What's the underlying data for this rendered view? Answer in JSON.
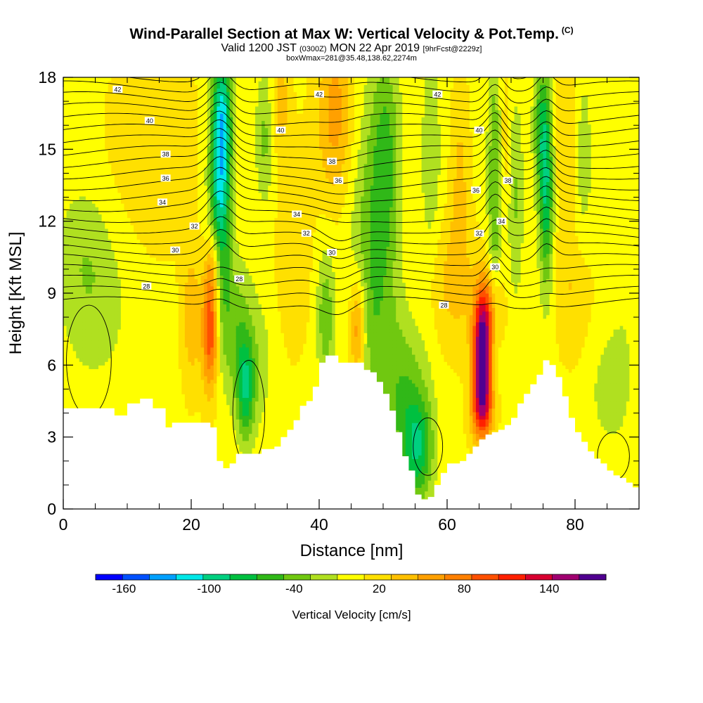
{
  "header": {
    "title": "Wind-Parallel Section at Max W: Vertical Velocity & Pot.Temp.",
    "copyright_mark": "(C)",
    "valid_prefix": "Valid 1200 JST",
    "valid_utc": "(0300Z)",
    "valid_date": "MON 22 Apr 2019",
    "forecast": "[9hrFcst@2229z]",
    "box_info": "boxWmax=281@35.48,138.62,2274m"
  },
  "chart_data": {
    "type": "heatmap",
    "title": "Wind-Parallel Section at Max W: Vertical Velocity & Pot.Temp.",
    "xlabel": "Distance [nm]",
    "ylabel": "Height [Kft MSL]",
    "xlim": [
      0,
      90
    ],
    "ylim": [
      0,
      18
    ],
    "x_ticks": [
      0,
      20,
      40,
      60,
      80
    ],
    "y_ticks": [
      0,
      3,
      6,
      9,
      12,
      15,
      18
    ],
    "colorbar": {
      "title": "Vertical Velocity [cm/s]",
      "labels": [
        "-160",
        "-100",
        "-40",
        "20",
        "80",
        "140"
      ],
      "label_values": [
        -160,
        -100,
        -40,
        20,
        80,
        140
      ],
      "min": -180,
      "max": 180,
      "step": 20,
      "colors": [
        "#0000ff",
        "#0050ff",
        "#00a0ff",
        "#00e8e8",
        "#00d080",
        "#00c040",
        "#30b818",
        "#70c810",
        "#b0e020",
        "#ffff00",
        "#ffe000",
        "#ffc000",
        "#ffa000",
        "#ff8000",
        "#ff5000",
        "#ff2000",
        "#d80030",
        "#a00070",
        "#500090"
      ]
    },
    "terrain_kft": [
      [
        0,
        4.2
      ],
      [
        4,
        4.2
      ],
      [
        8,
        4.2
      ],
      [
        8,
        3.9
      ],
      [
        10,
        4.4
      ],
      [
        12,
        4.6
      ],
      [
        14,
        4.2
      ],
      [
        16,
        3.4
      ],
      [
        17,
        3.6
      ],
      [
        20,
        3.6
      ],
      [
        23,
        3.4
      ],
      [
        24,
        2.0
      ],
      [
        25,
        1.7
      ],
      [
        26,
        1.9
      ],
      [
        27,
        2.3
      ],
      [
        30,
        2.3
      ],
      [
        31,
        2.5
      ],
      [
        33,
        2.6
      ],
      [
        34,
        3.0
      ],
      [
        35,
        3.3
      ],
      [
        36,
        3.7
      ],
      [
        37,
        4.3
      ],
      [
        38,
        4.5
      ],
      [
        39,
        5.1
      ],
      [
        40,
        6.1
      ],
      [
        41,
        6.4
      ],
      [
        42,
        6.4
      ],
      [
        43,
        6.1
      ],
      [
        46,
        6.1
      ],
      [
        47,
        5.8
      ],
      [
        48,
        5.7
      ],
      [
        49,
        5.3
      ],
      [
        50,
        4.8
      ],
      [
        51,
        4.1
      ],
      [
        52,
        3.2
      ],
      [
        53,
        2.2
      ],
      [
        54,
        1.6
      ],
      [
        55,
        0.6
      ],
      [
        56,
        0.4
      ],
      [
        57,
        0.5
      ],
      [
        58,
        1.0
      ],
      [
        59,
        1.5
      ],
      [
        60,
        1.9
      ],
      [
        62,
        2.0
      ],
      [
        63,
        2.3
      ],
      [
        64,
        2.6
      ],
      [
        65,
        2.9
      ],
      [
        66,
        3.1
      ],
      [
        67,
        3.2
      ],
      [
        68,
        3.3
      ],
      [
        69,
        3.5
      ],
      [
        70,
        3.8
      ],
      [
        71,
        4.4
      ],
      [
        72,
        4.8
      ],
      [
        73,
        5.2
      ],
      [
        74,
        5.6
      ],
      [
        75,
        6.2
      ],
      [
        76,
        6.0
      ],
      [
        77,
        5.5
      ],
      [
        78,
        4.7
      ],
      [
        79,
        3.8
      ],
      [
        80,
        3.2
      ],
      [
        81,
        2.8
      ],
      [
        82,
        2.4
      ],
      [
        83,
        2.1
      ],
      [
        84,
        1.9
      ],
      [
        85,
        1.6
      ],
      [
        86,
        1.4
      ],
      [
        87,
        1.3
      ],
      [
        88,
        1.1
      ],
      [
        89,
        0.9
      ],
      [
        90,
        0.7
      ]
    ],
    "isentrope_labels": [
      {
        "x": 8.5,
        "y": 17.5,
        "text": "42"
      },
      {
        "x": 40,
        "y": 17.3,
        "text": "42"
      },
      {
        "x": 58.5,
        "y": 17.3,
        "text": "42"
      },
      {
        "x": 13.5,
        "y": 16.2,
        "text": "40"
      },
      {
        "x": 34,
        "y": 15.8,
        "text": "40"
      },
      {
        "x": 65,
        "y": 15.8,
        "text": "40"
      },
      {
        "x": 16,
        "y": 14.8,
        "text": "38"
      },
      {
        "x": 42,
        "y": 14.5,
        "text": "38"
      },
      {
        "x": 69.5,
        "y": 13.7,
        "text": "38"
      },
      {
        "x": 16,
        "y": 13.8,
        "text": "36"
      },
      {
        "x": 43,
        "y": 13.7,
        "text": "36"
      },
      {
        "x": 64.5,
        "y": 13.3,
        "text": "36"
      },
      {
        "x": 15.5,
        "y": 12.8,
        "text": "34"
      },
      {
        "x": 36.5,
        "y": 12.3,
        "text": "34"
      },
      {
        "x": 68.5,
        "y": 12.0,
        "text": "34"
      },
      {
        "x": 20.5,
        "y": 11.8,
        "text": "32"
      },
      {
        "x": 38,
        "y": 11.5,
        "text": "32"
      },
      {
        "x": 65,
        "y": 11.5,
        "text": "32"
      },
      {
        "x": 17.5,
        "y": 10.8,
        "text": "30"
      },
      {
        "x": 42,
        "y": 10.7,
        "text": "30"
      },
      {
        "x": 67.5,
        "y": 10.1,
        "text": "30"
      },
      {
        "x": 13,
        "y": 9.3,
        "text": "28"
      },
      {
        "x": 27.5,
        "y": 9.6,
        "text": "28"
      },
      {
        "x": 59.5,
        "y": 8.5,
        "text": "28"
      }
    ],
    "fields": {
      "base_cm_s": 15,
      "features": [
        {
          "x": 24.5,
          "y": 13.5,
          "sx": 1.2,
          "sy": 3.5,
          "w": -115
        },
        {
          "x": 25.0,
          "y": 16.5,
          "sx": 1.0,
          "sy": 2.0,
          "w": -60
        },
        {
          "x": 23.0,
          "y": 7.5,
          "sx": 0.9,
          "sy": 1.8,
          "w": 115
        },
        {
          "x": 23.5,
          "y": 10.2,
          "sx": 0.8,
          "sy": 1.2,
          "w": 50
        },
        {
          "x": 28.5,
          "y": 5.0,
          "sx": 1.0,
          "sy": 1.5,
          "w": -85
        },
        {
          "x": 27.0,
          "y": 7.5,
          "sx": 2.0,
          "sy": 2.0,
          "w": -45
        },
        {
          "x": 20.0,
          "y": 8.0,
          "sx": 1.0,
          "sy": 2.0,
          "w": 40
        },
        {
          "x": 31.5,
          "y": 15.5,
          "sx": 1.0,
          "sy": 2.0,
          "w": -40
        },
        {
          "x": 31.0,
          "y": 6.0,
          "sx": 1.5,
          "sy": 2.0,
          "w": -20
        },
        {
          "x": 34.0,
          "y": 17.0,
          "sx": 1.0,
          "sy": 1.5,
          "w": 35
        },
        {
          "x": 42.5,
          "y": 16.5,
          "sx": 2.0,
          "sy": 2.5,
          "w": 55
        },
        {
          "x": 41.0,
          "y": 8.0,
          "sx": 1.0,
          "sy": 2.0,
          "w": -50
        },
        {
          "x": 46.0,
          "y": 7.5,
          "sx": 0.9,
          "sy": 1.6,
          "w": 75
        },
        {
          "x": 48.5,
          "y": 10.0,
          "sx": 2.5,
          "sy": 5.0,
          "w": -55
        },
        {
          "x": 50.5,
          "y": 15.0,
          "sx": 1.5,
          "sy": 3.0,
          "w": -45
        },
        {
          "x": 55.5,
          "y": 2.5,
          "sx": 1.6,
          "sy": 1.5,
          "w": -75
        },
        {
          "x": 53.5,
          "y": 4.5,
          "sx": 2.5,
          "sy": 2.5,
          "w": -50
        },
        {
          "x": 57.5,
          "y": 14.0,
          "sx": 1.2,
          "sy": 4.0,
          "w": -30
        },
        {
          "x": 62.0,
          "y": 13.5,
          "sx": 1.0,
          "sy": 3.0,
          "w": 30
        },
        {
          "x": 65.5,
          "y": 6.5,
          "sx": 1.0,
          "sy": 1.6,
          "w": 180
        },
        {
          "x": 65.5,
          "y": 4.2,
          "sx": 1.2,
          "sy": 1.0,
          "w": 100
        },
        {
          "x": 66.5,
          "y": 8.5,
          "sx": 1.5,
          "sy": 1.2,
          "w": 55
        },
        {
          "x": 67.5,
          "y": 13.5,
          "sx": 0.8,
          "sy": 4.0,
          "w": -60
        },
        {
          "x": 69.0,
          "y": 14.5,
          "sx": 0.8,
          "sy": 3.0,
          "w": 30
        },
        {
          "x": 70.5,
          "y": 13.0,
          "sx": 1.0,
          "sy": 3.0,
          "w": -40
        },
        {
          "x": 75.5,
          "y": 13.5,
          "sx": 0.8,
          "sy": 3.0,
          "w": -95
        },
        {
          "x": 74.5,
          "y": 16.0,
          "sx": 0.8,
          "sy": 2.0,
          "w": -50
        },
        {
          "x": 79.0,
          "y": 15.0,
          "sx": 1.5,
          "sy": 3.0,
          "w": 30
        },
        {
          "x": 80.0,
          "y": 9.0,
          "sx": 2.0,
          "sy": 2.0,
          "w": 25
        },
        {
          "x": 81.0,
          "y": 14.5,
          "sx": 1.2,
          "sy": 3.0,
          "w": -35
        },
        {
          "x": 85.0,
          "y": 5.0,
          "sx": 2.5,
          "sy": 2.0,
          "w": -20
        },
        {
          "x": 88.0,
          "y": 8.0,
          "sx": 2.0,
          "sy": 4.0,
          "w": -10
        },
        {
          "x": 5.0,
          "y": 8.5,
          "sx": 4.0,
          "sy": 2.5,
          "w": -25
        },
        {
          "x": 3.0,
          "y": 11.0,
          "sx": 3.0,
          "sy": 2.0,
          "w": -20
        },
        {
          "x": 14.0,
          "y": 15.0,
          "sx": 5.0,
          "sy": 3.0,
          "w": 20
        },
        {
          "x": 36.0,
          "y": 11.0,
          "sx": 2.0,
          "sy": 3.0,
          "w": 20
        },
        {
          "x": 60.0,
          "y": 9.5,
          "sx": 3.0,
          "sy": 2.0,
          "w": 30
        }
      ]
    }
  }
}
